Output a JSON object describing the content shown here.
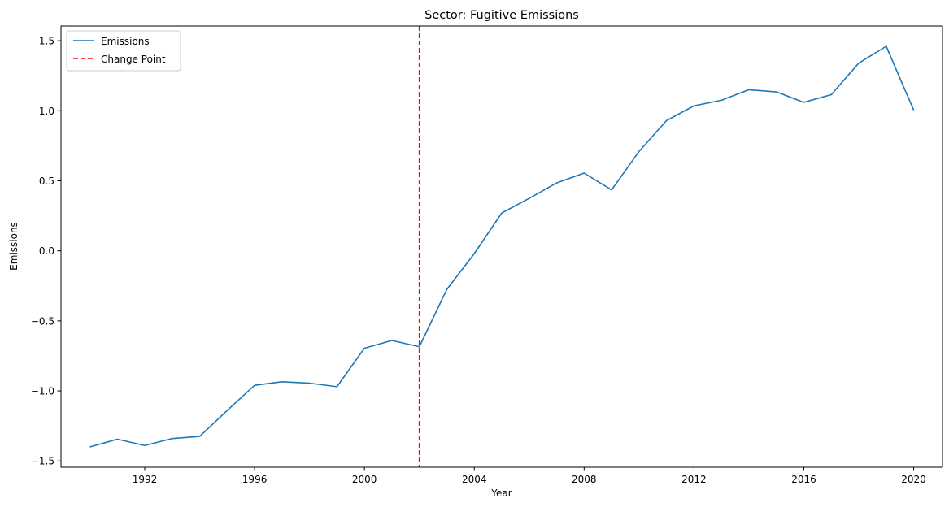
{
  "chart_data": {
    "type": "line",
    "title": "Sector: Fugitive Emissions",
    "xlabel": "Year",
    "ylabel": "Emissions",
    "xlim": [
      1988.95,
      2021.05
    ],
    "ylim": [
      -1.545,
      1.605
    ],
    "xticks": [
      1992,
      1996,
      2000,
      2004,
      2008,
      2012,
      2016,
      2020
    ],
    "yticks": [
      -1.5,
      -1.0,
      -0.5,
      0.0,
      0.5,
      1.0,
      1.5
    ],
    "ytick_labels": [
      "−1.5",
      "−1.0",
      "−0.5",
      "0.0",
      "0.5",
      "1.0",
      "1.5"
    ],
    "grid": false,
    "legend_position": "top-left",
    "series": [
      {
        "name": "Emissions",
        "color": "#1f77b4",
        "x": [
          1990,
          1991,
          1992,
          1993,
          1994,
          1995,
          1996,
          1997,
          1998,
          1999,
          2000,
          2001,
          2002,
          2003,
          2004,
          2005,
          2006,
          2007,
          2008,
          2009,
          2010,
          2011,
          2012,
          2013,
          2014,
          2015,
          2016,
          2017,
          2018,
          2019,
          2020
        ],
        "y": [
          -1.4,
          -1.345,
          -1.39,
          -1.34,
          -1.325,
          -1.14,
          -0.96,
          -0.935,
          -0.945,
          -0.97,
          -0.695,
          -0.64,
          -0.685,
          -0.275,
          -0.02,
          0.27,
          0.375,
          0.485,
          0.555,
          0.435,
          0.71,
          0.93,
          1.035,
          1.075,
          1.15,
          1.135,
          1.06,
          1.115,
          1.34,
          1.46,
          1.005
        ]
      }
    ],
    "change_point": {
      "name": "Change Point",
      "x": 2002,
      "color": "#ff0000",
      "style": "dashed"
    }
  }
}
